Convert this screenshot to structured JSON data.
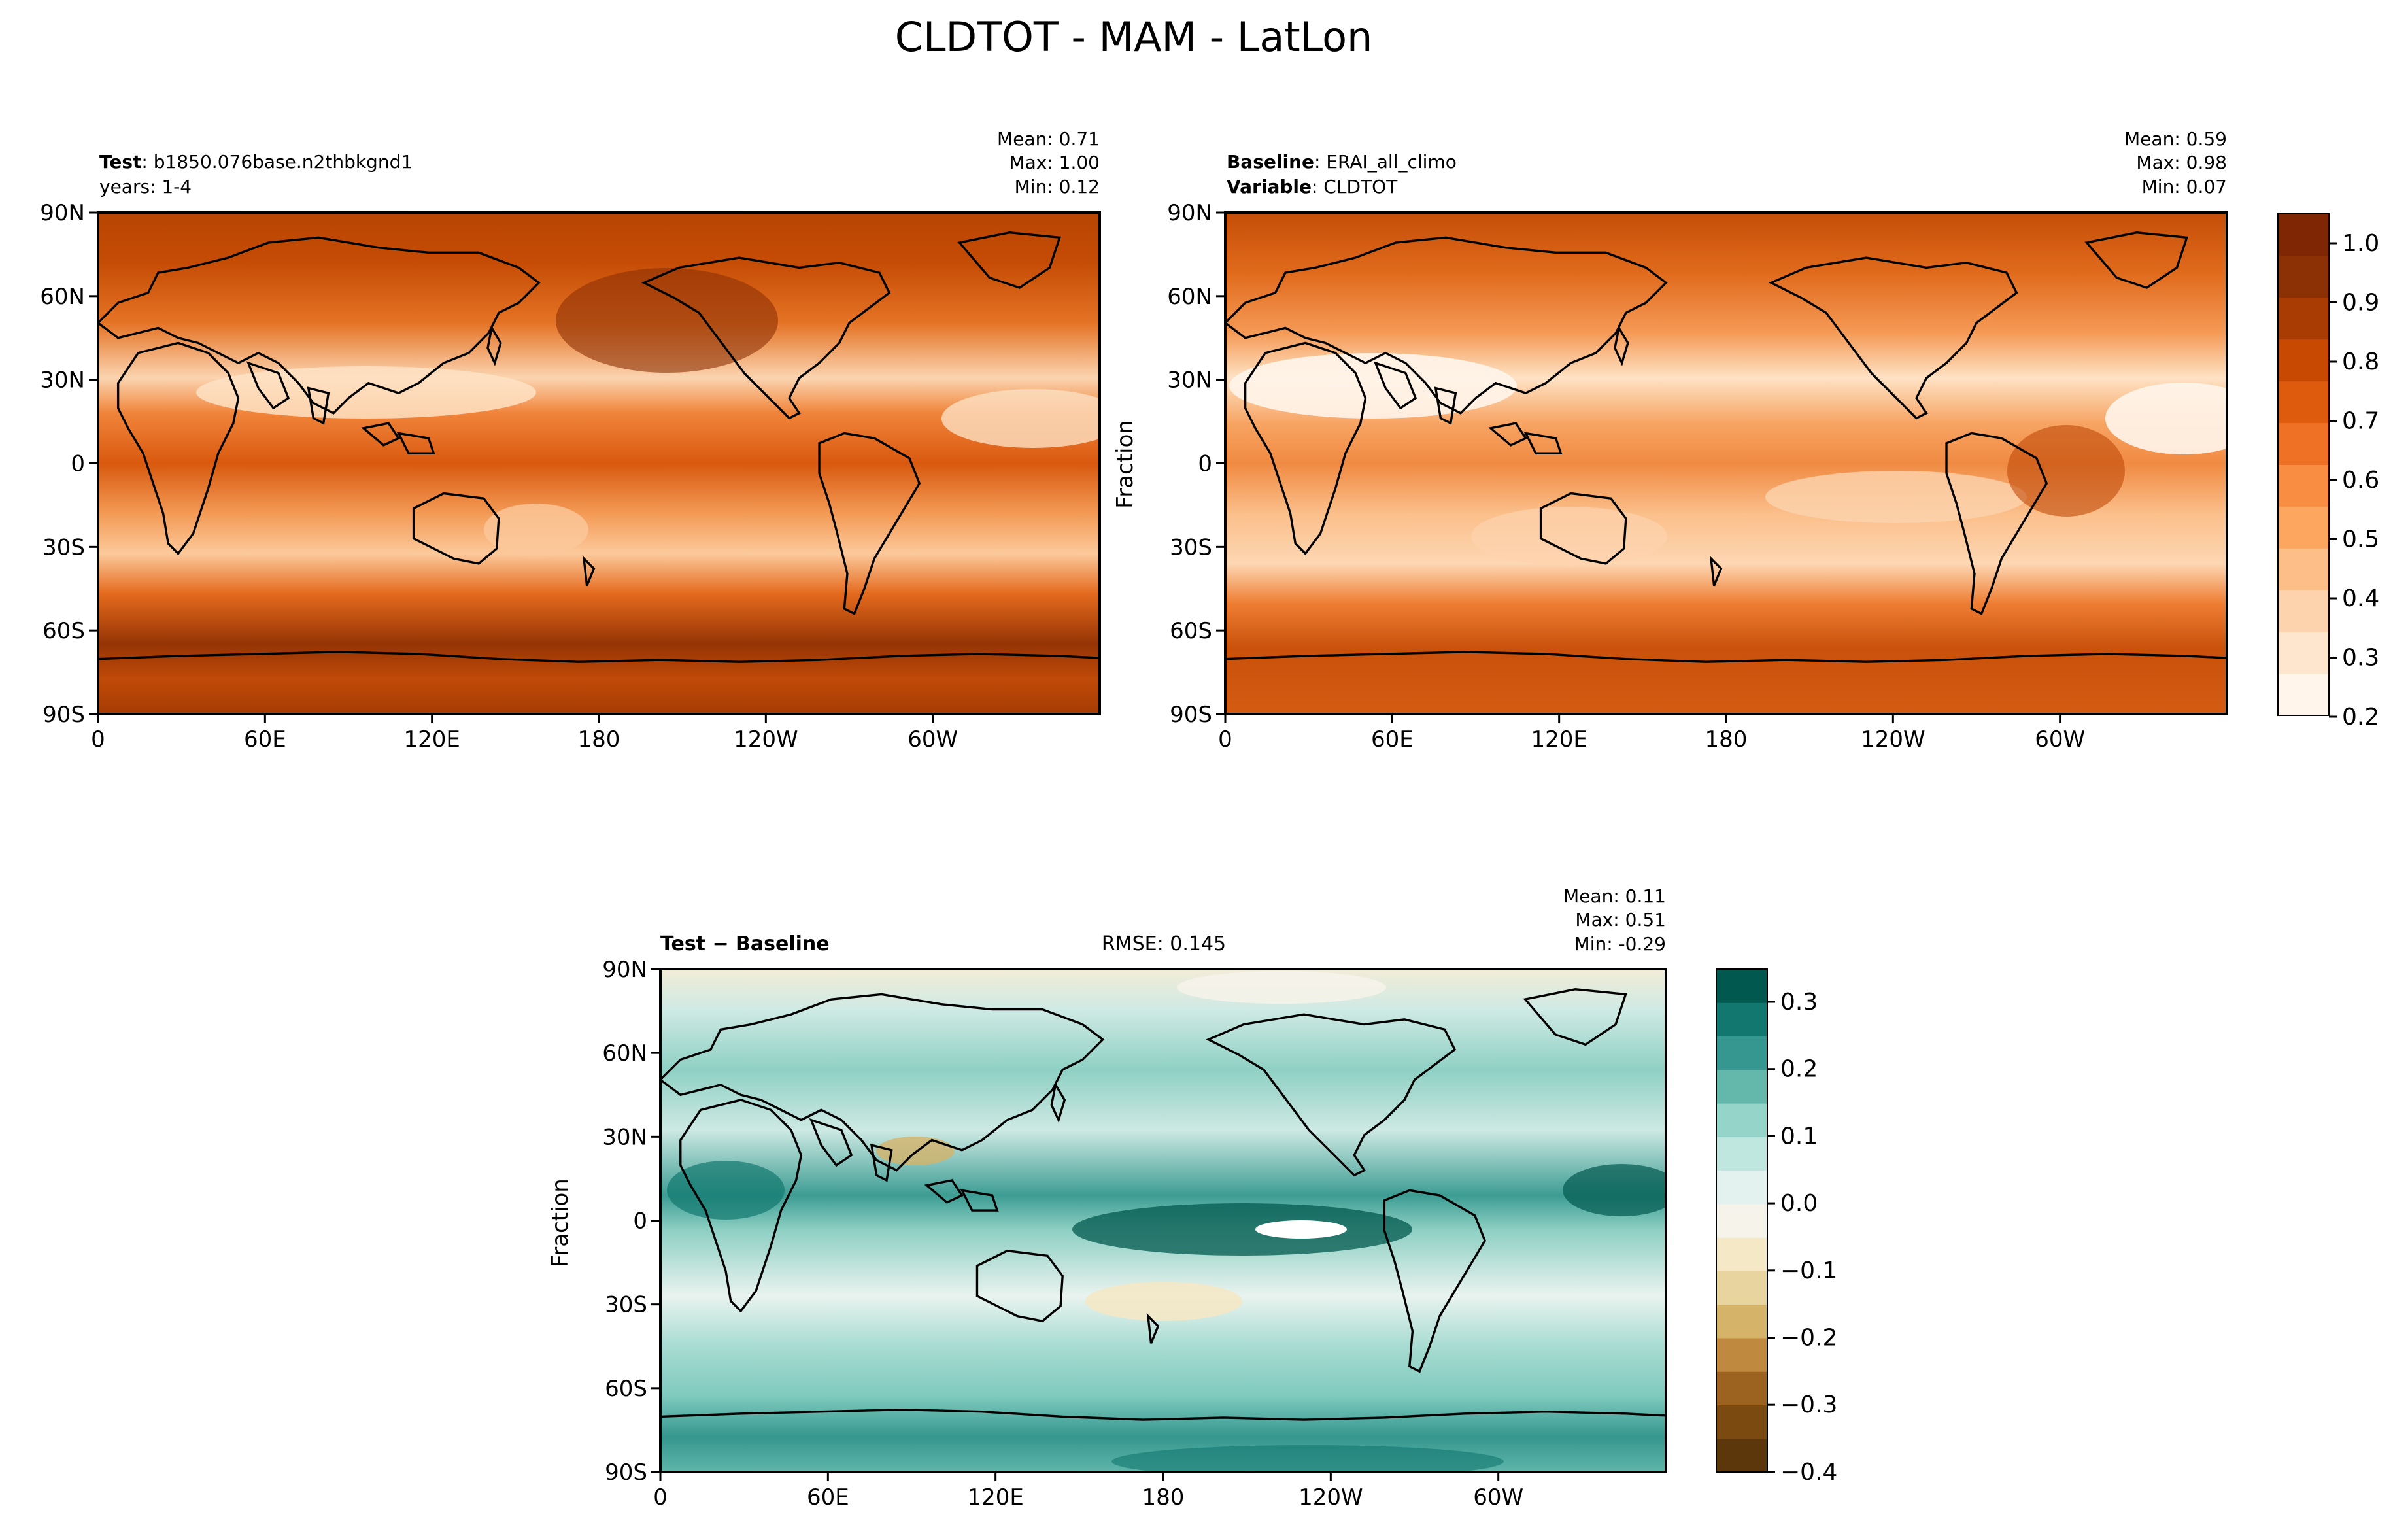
{
  "title": "CLDTOT - MAM - LatLon",
  "panels": [
    {
      "id": "test",
      "left_lines": [
        {
          "bold": "Test",
          "text": ": b1850.076base.n2thbkgnd1"
        },
        {
          "bold": "",
          "text": "years: 1-4"
        }
      ],
      "stats": [
        "Mean:  0.71",
        "Max:  1.00",
        "Min:  0.12"
      ],
      "center_text": "",
      "ylabel": ""
    },
    {
      "id": "baseline",
      "left_lines": [
        {
          "bold": "Baseline",
          "text": ": ERAI_all_climo"
        },
        {
          "bold": "Variable",
          "text": ": CLDTOT"
        }
      ],
      "stats": [
        "Mean:  0.59",
        "Max:  0.98",
        "Min:  0.07"
      ],
      "center_text": "",
      "ylabel": "Fraction"
    },
    {
      "id": "diff",
      "left_lines": [
        {
          "bold": "Test − Baseline",
          "text": ""
        }
      ],
      "stats": [
        "Mean:  0.11",
        "Max:  0.51",
        "Min: -0.29"
      ],
      "center_text": "RMSE: 0.145",
      "ylabel": "Fraction"
    }
  ],
  "axes": {
    "lat_ticks": [
      "90N",
      "60N",
      "30N",
      "0",
      "30S",
      "60S",
      "90S"
    ],
    "lon_ticks": [
      "0",
      "60E",
      "120E",
      "180",
      "120W",
      "60W"
    ]
  },
  "colorbar_main": {
    "ticks": [
      "1.0",
      "0.9",
      "0.8",
      "0.7",
      "0.6",
      "0.5",
      "0.4",
      "0.3",
      "0.2"
    ],
    "colors": [
      "#fff5eb",
      "#fee6ce",
      "#fdd3ae",
      "#fdbe87",
      "#fda660",
      "#f98d41",
      "#ef7125",
      "#de5a0c",
      "#c84a02",
      "#a93c03",
      "#8c3005",
      "#7f2704"
    ]
  },
  "colorbar_diff": {
    "ticks": [
      "0.3",
      "0.2",
      "0.1",
      "0.0",
      "−0.1",
      "−0.2",
      "−0.3",
      "−0.4"
    ],
    "colors": [
      "#5b370b",
      "#7b4a10",
      "#9c6320",
      "#bf8a3f",
      "#d5b369",
      "#e8d49f",
      "#f4e8c6",
      "#f5f3ea",
      "#e3f1ef",
      "#bfe6df",
      "#95d4c9",
      "#64b7ab",
      "#35978f",
      "#11776f",
      "#01584e"
    ]
  },
  "colors": {
    "land_outline": "#000000",
    "main_fill_high": "#8c3005",
    "main_fill_mid": "#e6631a",
    "main_fill_low": "#fff5eb",
    "diff_fill_pos": "#2f9488",
    "diff_fill_neutral": "#d9efea",
    "diff_fill_neg": "#d7b46e"
  }
}
